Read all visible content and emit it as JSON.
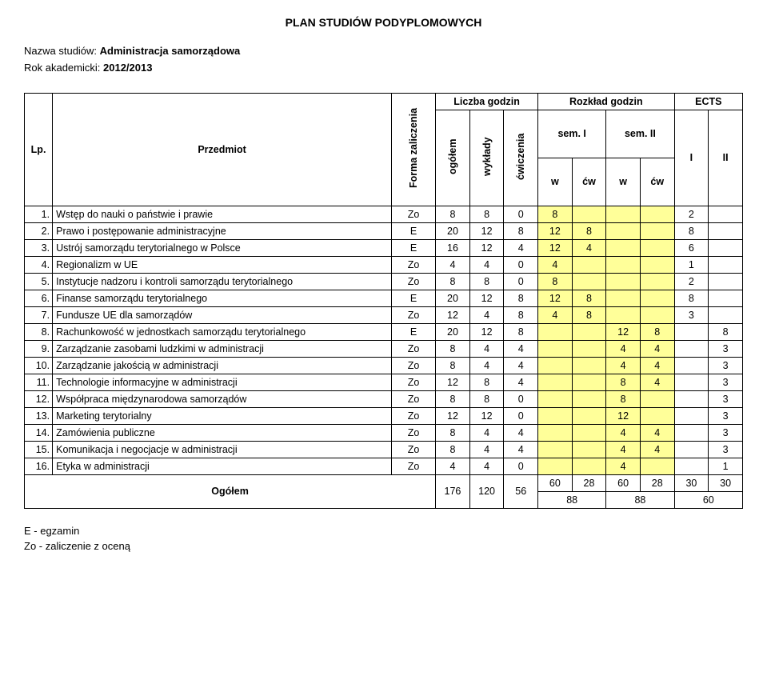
{
  "title": "PLAN STUDIÓW PODYPLOMOWYCH",
  "meta": {
    "name_label": "Nazwa studiów:",
    "name_value": "Administracja samorządowa",
    "year_label": "Rok akademicki:",
    "year_value": "2012/2013"
  },
  "headers": {
    "lp": "Lp.",
    "subject": "Przedmiot",
    "form": "Forma zaliczenia",
    "hours_group": "Liczba godzin",
    "ogolem": "ogółem",
    "wyklady": "wykłady",
    "cwiczenia": "ćwiczenia",
    "rozklad": "Rozkład godzin",
    "sem1": "sem. I",
    "sem2": "sem. II",
    "w": "w",
    "cw": "ćw",
    "ects": "ECTS",
    "I": "I",
    "II": "II"
  },
  "rows": [
    {
      "lp": "1.",
      "name": "Wstęp do nauki o państwie i prawie",
      "form": "Zo",
      "og": "8",
      "w": "8",
      "cw": "0",
      "s1w": "8",
      "s1c": "",
      "s2w": "",
      "s2c": "",
      "e1": "2",
      "e2": ""
    },
    {
      "lp": "2.",
      "name": "Prawo i postępowanie administracyjne",
      "form": "E",
      "og": "20",
      "w": "12",
      "cw": "8",
      "s1w": "12",
      "s1c": "8",
      "s2w": "",
      "s2c": "",
      "e1": "8",
      "e2": ""
    },
    {
      "lp": "3.",
      "name": "Ustrój samorządu terytorialnego w Polsce",
      "form": "E",
      "og": "16",
      "w": "12",
      "cw": "4",
      "s1w": "12",
      "s1c": "4",
      "s2w": "",
      "s2c": "",
      "e1": "6",
      "e2": ""
    },
    {
      "lp": "4.",
      "name": "Regionalizm w UE",
      "form": "Zo",
      "og": "4",
      "w": "4",
      "cw": "0",
      "s1w": "4",
      "s1c": "",
      "s2w": "",
      "s2c": "",
      "e1": "1",
      "e2": ""
    },
    {
      "lp": "5.",
      "name": "Instytucje nadzoru i kontroli samorządu terytorialnego",
      "form": "Zo",
      "og": "8",
      "w": "8",
      "cw": "0",
      "s1w": "8",
      "s1c": "",
      "s2w": "",
      "s2c": "",
      "e1": "2",
      "e2": ""
    },
    {
      "lp": "6.",
      "name": "Finanse samorządu terytorialnego",
      "form": "E",
      "og": "20",
      "w": "12",
      "cw": "8",
      "s1w": "12",
      "s1c": "8",
      "s2w": "",
      "s2c": "",
      "e1": "8",
      "e2": ""
    },
    {
      "lp": "7.",
      "name": "Fundusze UE dla samorządów",
      "form": "Zo",
      "og": "12",
      "w": "4",
      "cw": "8",
      "s1w": "4",
      "s1c": "8",
      "s2w": "",
      "s2c": "",
      "e1": "3",
      "e2": ""
    },
    {
      "lp": "8.",
      "name": "Rachunkowość w jednostkach samorządu terytorialnego",
      "form": "E",
      "og": "20",
      "w": "12",
      "cw": "8",
      "s1w": "",
      "s1c": "",
      "s2w": "12",
      "s2c": "8",
      "e1": "",
      "e2": "8"
    },
    {
      "lp": "9.",
      "name": "Zarządzanie zasobami ludzkimi w administracji",
      "form": "Zo",
      "og": "8",
      "w": "4",
      "cw": "4",
      "s1w": "",
      "s1c": "",
      "s2w": "4",
      "s2c": "4",
      "e1": "",
      "e2": "3"
    },
    {
      "lp": "10.",
      "name": "Zarządzanie jakością w administracji",
      "form": "Zo",
      "og": "8",
      "w": "4",
      "cw": "4",
      "s1w": "",
      "s1c": "",
      "s2w": "4",
      "s2c": "4",
      "e1": "",
      "e2": "3"
    },
    {
      "lp": "11.",
      "name": "Technologie informacyjne w administracji",
      "form": "Zo",
      "og": "12",
      "w": "8",
      "cw": "4",
      "s1w": "",
      "s1c": "",
      "s2w": "8",
      "s2c": "4",
      "e1": "",
      "e2": "3"
    },
    {
      "lp": "12.",
      "name": "Współpraca międzynarodowa samorządów",
      "form": "Zo",
      "og": "8",
      "w": "8",
      "cw": "0",
      "s1w": "",
      "s1c": "",
      "s2w": "8",
      "s2c": "",
      "e1": "",
      "e2": "3"
    },
    {
      "lp": "13.",
      "name": "Marketing terytorialny",
      "form": "Zo",
      "og": "12",
      "w": "12",
      "cw": "0",
      "s1w": "",
      "s1c": "",
      "s2w": "12",
      "s2c": "",
      "e1": "",
      "e2": "3"
    },
    {
      "lp": "14.",
      "name": "Zamówienia publiczne",
      "form": "Zo",
      "og": "8",
      "w": "4",
      "cw": "4",
      "s1w": "",
      "s1c": "",
      "s2w": "4",
      "s2c": "4",
      "e1": "",
      "e2": "3"
    },
    {
      "lp": "15.",
      "name": "Komunikacja i negocjacje w administracji",
      "form": "Zo",
      "og": "8",
      "w": "4",
      "cw": "4",
      "s1w": "",
      "s1c": "",
      "s2w": "4",
      "s2c": "4",
      "e1": "",
      "e2": "3"
    },
    {
      "lp": "16.",
      "name": "Etyka w administracji",
      "form": "Zo",
      "og": "4",
      "w": "4",
      "cw": "0",
      "s1w": "",
      "s1c": "",
      "s2w": "4",
      "s2c": "",
      "e1": "",
      "e2": "1"
    }
  ],
  "totals": {
    "label": "Ogółem",
    "og": "176",
    "w": "120",
    "cw": "56",
    "s1w": "60",
    "s1c": "28",
    "s2w": "60",
    "s2c": "28",
    "e1": "30",
    "e2": "30",
    "s1sum": "88",
    "s2sum": "88",
    "esum": "60"
  },
  "legend": {
    "e": "E - egzamin",
    "zo": "Zo - zaliczenie z oceną"
  }
}
